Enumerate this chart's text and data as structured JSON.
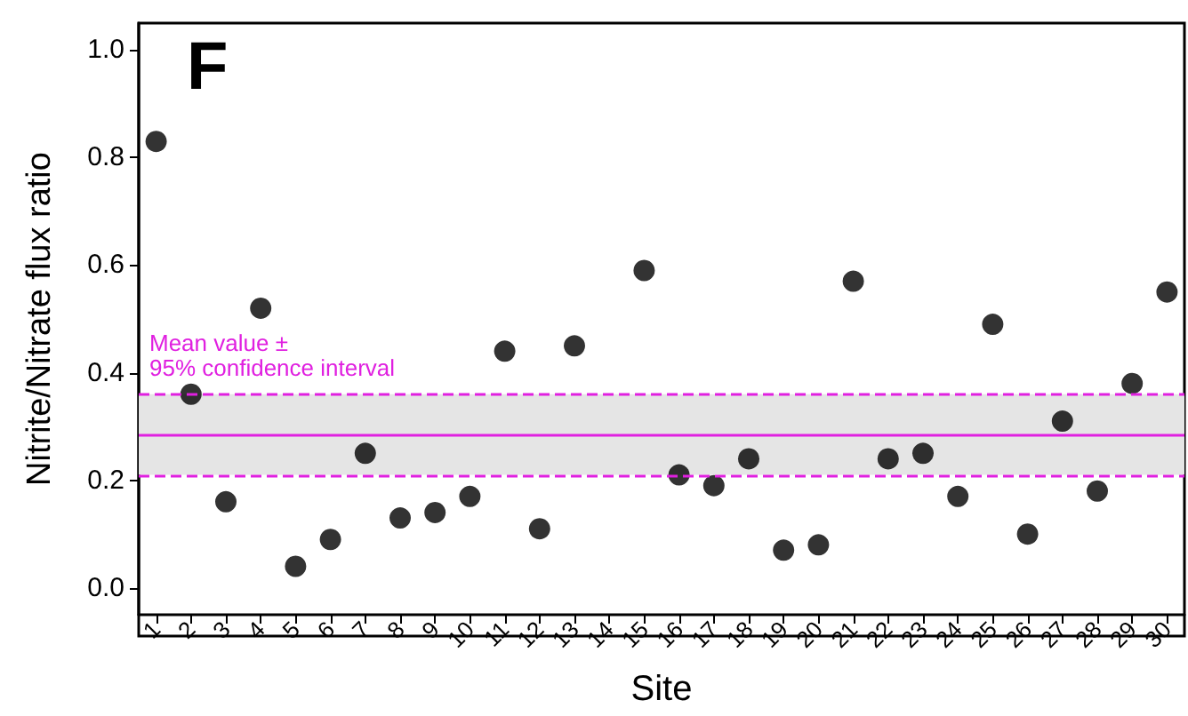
{
  "chart_data": {
    "type": "scatter",
    "title": "F",
    "xlabel": "Site",
    "ylabel": "Nitrite/Nitrate flux ratio",
    "categories": [
      "1",
      "2",
      "3",
      "4",
      "5",
      "6",
      "7",
      "8",
      "9",
      "10",
      "11",
      "12",
      "13",
      "14",
      "15",
      "16",
      "17",
      "18",
      "19",
      "20",
      "21",
      "22",
      "23",
      "24",
      "25",
      "26",
      "27",
      "28",
      "29",
      "30"
    ],
    "series": [
      {
        "color": "#000000",
        "values": [
          0.83,
          0.36,
          0.16,
          0.52,
          0.04,
          0.09,
          0.25,
          0.13,
          0.14,
          0.17,
          0.44,
          0.11,
          0.45,
          null,
          0.59,
          0.21,
          0.19,
          0.24,
          0.07,
          0.08,
          0.57,
          0.24,
          0.25,
          0.17,
          0.49,
          0.1,
          0.31,
          0.18,
          0.38,
          0.55
        ]
      }
    ],
    "ylim": [
      -0.05,
      1.05
    ],
    "yticks": [
      {
        "value": 0,
        "label": "0.0"
      },
      {
        "value": 0.2,
        "label": "0.2"
      },
      {
        "value": 0.4,
        "label": "0.4"
      },
      {
        "value": 0.6,
        "label": "0.6"
      },
      {
        "value": 0.8,
        "label": "0.8"
      },
      {
        "value": 1,
        "label": "1.0"
      }
    ],
    "bands": [
      {
        "axis": "y",
        "from": 0.21,
        "to": 0.36,
        "color": "#e5e5e5",
        "label": "Mean value ±\n95% confidence interval"
      }
    ],
    "ref_lines": [
      {
        "axis": "y",
        "value": 0.286,
        "color": "#e020e0",
        "line_style": "solid"
      },
      {
        "axis": "y",
        "value": 0.36,
        "color": "#e020e0",
        "line_style": "dashed"
      },
      {
        "axis": "y",
        "value": 0.21,
        "color": "#e020e0",
        "line_style": "dashed"
      }
    ],
    "grid": false,
    "marker": "circle"
  }
}
